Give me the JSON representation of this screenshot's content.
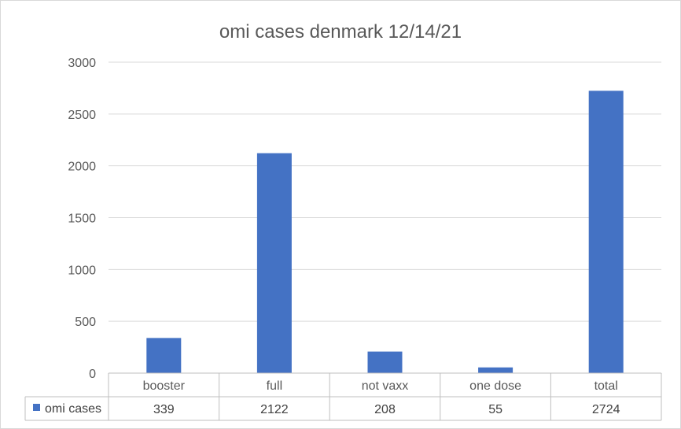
{
  "chart_data": {
    "type": "bar",
    "title": "omi cases denmark 12/14/21",
    "categories": [
      "booster",
      "full",
      "not vaxx",
      "one dose",
      "total"
    ],
    "series": [
      {
        "name": "omi cases",
        "values": [
          339,
          2122,
          208,
          55,
          2724
        ],
        "color": "#4472C4"
      }
    ],
    "yticks": [
      "0",
      "500",
      "1000",
      "1500",
      "2000",
      "2500",
      "3000"
    ],
    "ylim": [
      0,
      3000
    ],
    "grid": true,
    "legend": "data-table-left",
    "data_table": true
  }
}
